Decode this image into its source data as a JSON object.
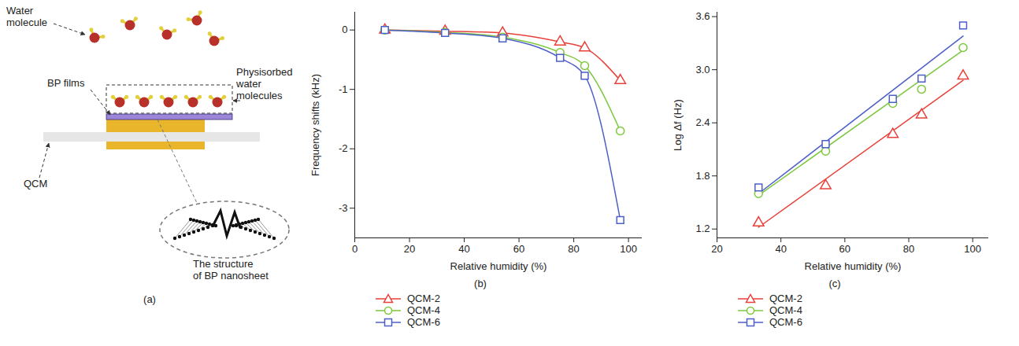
{
  "diagram": {
    "label": "(a)",
    "texts": {
      "water_molecule": [
        "Water",
        "molecule"
      ],
      "bp_films": [
        "BP films"
      ],
      "physisorbed": [
        "Physisorbed",
        "water",
        "molecules"
      ],
      "qcm": [
        "QCM"
      ],
      "structure": [
        "The structure",
        "of BP nanosheet"
      ]
    }
  },
  "chart_data": [
    {
      "type": "line",
      "label": "(b)",
      "xlabel": "Relative humidity (%)",
      "ylabel": "Frequency shifts (kHz)",
      "x": [
        11,
        33,
        54,
        75,
        84,
        97
      ],
      "series": [
        {
          "name": "QCM-2",
          "color": "#e8403a",
          "marker": "triangle",
          "values": [
            0,
            -0.02,
            -0.05,
            -0.2,
            -0.3,
            -0.85
          ]
        },
        {
          "name": "QCM-4",
          "color": "#7dc83c",
          "marker": "circle",
          "values": [
            0,
            -0.04,
            -0.12,
            -0.38,
            -0.6,
            -1.7
          ]
        },
        {
          "name": "QCM-6",
          "color": "#4d5fc8",
          "marker": "square",
          "values": [
            0,
            -0.05,
            -0.14,
            -0.47,
            -0.77,
            -3.2
          ]
        }
      ],
      "xlim": [
        0,
        105
      ],
      "xticks": [
        0,
        20,
        40,
        60,
        80,
        100
      ],
      "ylim": [
        -3.5,
        0.3
      ],
      "yticks": [
        -3,
        -2,
        -1,
        0
      ],
      "legend": "bottom"
    },
    {
      "type": "scatter",
      "label": "(c)",
      "xlabel": "Relative humidity (%)",
      "ylabel": "Log Δf (Hz)",
      "x": [
        33,
        54,
        75,
        84,
        97
      ],
      "fit_x": [
        33,
        97
      ],
      "series": [
        {
          "name": "QCM-2",
          "color": "#e8403a",
          "marker": "triangle",
          "values": [
            1.27,
            1.69,
            2.27,
            2.49,
            2.93
          ],
          "fit": [
            1.22,
            2.88
          ]
        },
        {
          "name": "QCM-4",
          "color": "#7dc83c",
          "marker": "circle",
          "values": [
            1.6,
            2.08,
            2.62,
            2.78,
            3.25
          ],
          "fit": [
            1.58,
            3.22
          ]
        },
        {
          "name": "QCM-6",
          "color": "#4d5fc8",
          "marker": "square",
          "values": [
            1.67,
            2.16,
            2.67,
            2.9,
            3.5
          ],
          "fit": [
            1.6,
            3.38
          ]
        }
      ],
      "xlim": [
        20,
        105
      ],
      "xticks": [
        20,
        40,
        60,
        80,
        100
      ],
      "ylim": [
        1.1,
        3.65
      ],
      "yticks": [
        1.2,
        1.8,
        2.4,
        {
          "value": 3,
          "label": "3.0"
        },
        3.6
      ],
      "legend": "bottom"
    }
  ]
}
